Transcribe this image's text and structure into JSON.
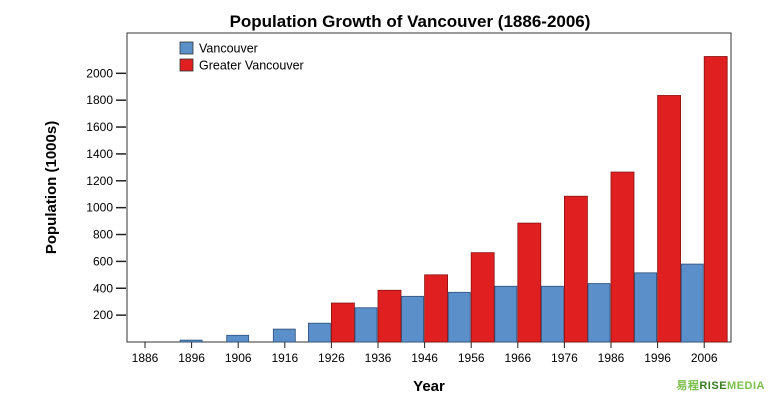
{
  "chart_data": {
    "type": "bar",
    "title": "Population Growth of Vancouver (1886-2006)",
    "xlabel": "Year",
    "ylabel": "Population (1000s)",
    "categories": [
      "1886",
      "1896",
      "1906",
      "1916",
      "1926",
      "1936",
      "1946",
      "1956",
      "1966",
      "1976",
      "1986",
      "1996",
      "2006"
    ],
    "series": [
      {
        "name": "Vancouver",
        "color": "#5b8fc9",
        "values": [
          0,
          14,
          50,
          96,
          140,
          255,
          340,
          370,
          415,
          415,
          435,
          515,
          580
        ]
      },
      {
        "name": "Greater Vancouver",
        "color": "#e02020",
        "values": [
          null,
          null,
          null,
          null,
          290,
          385,
          500,
          665,
          885,
          1085,
          1265,
          1835,
          2125
        ]
      }
    ],
    "yticks": [
      200,
      400,
      600,
      800,
      1000,
      1200,
      1400,
      1600,
      1800,
      2000
    ],
    "ylim": [
      0,
      2300
    ],
    "legend_position": "top-left",
    "grid": false
  },
  "watermark": {
    "prefix": "易程",
    "rise": "RISE",
    "media": "MEDIA"
  }
}
